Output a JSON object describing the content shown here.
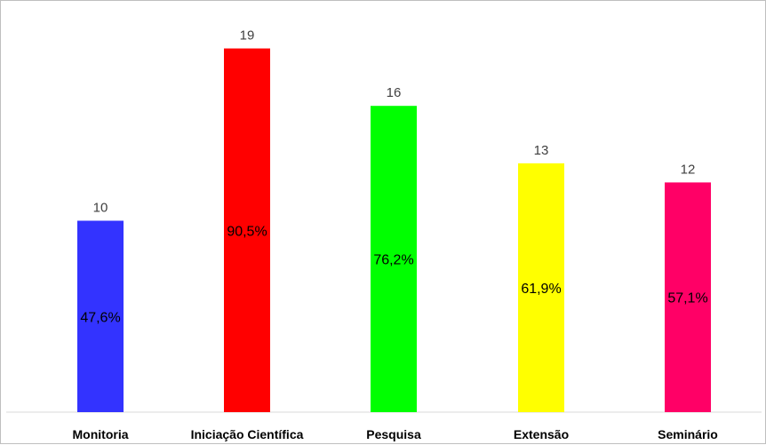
{
  "chart_data": {
    "type": "bar",
    "title": "",
    "xlabel": "",
    "ylabel": "",
    "categories": [
      "Monitoria",
      "Iniciação Científica",
      "Pesquisa",
      "Extensão",
      "Seminário"
    ],
    "values": [
      10,
      19,
      16,
      13,
      12
    ],
    "percent_labels": [
      "47,6%",
      "90,5%",
      "76,2%",
      "61,9%",
      "57,1%"
    ],
    "colors": [
      "#3333ff",
      "#ff0000",
      "#00ff00",
      "#ffff00",
      "#ff0066"
    ],
    "ylim": [
      0,
      20
    ],
    "grid": false,
    "legend": "none"
  }
}
